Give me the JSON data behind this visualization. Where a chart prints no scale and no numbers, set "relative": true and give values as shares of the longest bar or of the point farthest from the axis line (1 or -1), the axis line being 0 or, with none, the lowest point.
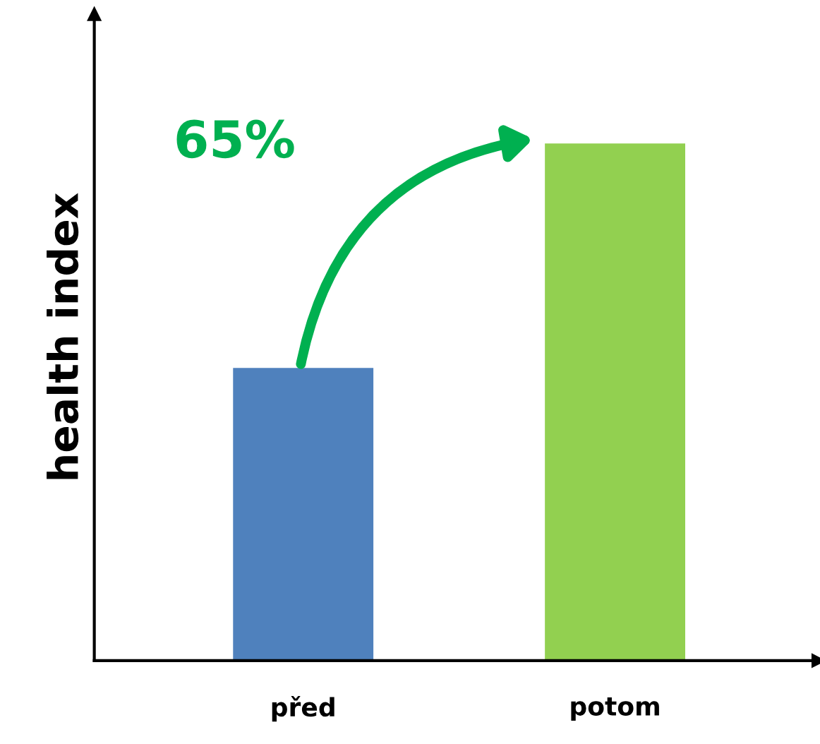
{
  "chart_data": {
    "type": "bar",
    "relative": true,
    "ylabel": "health index",
    "categories": [
      "před",
      "potom"
    ],
    "values": [
      0.566,
      1
    ],
    "colors": [
      "#4f81bd",
      "#92d050"
    ],
    "annotations": [
      "65%"
    ],
    "grid": false,
    "legend": false
  }
}
